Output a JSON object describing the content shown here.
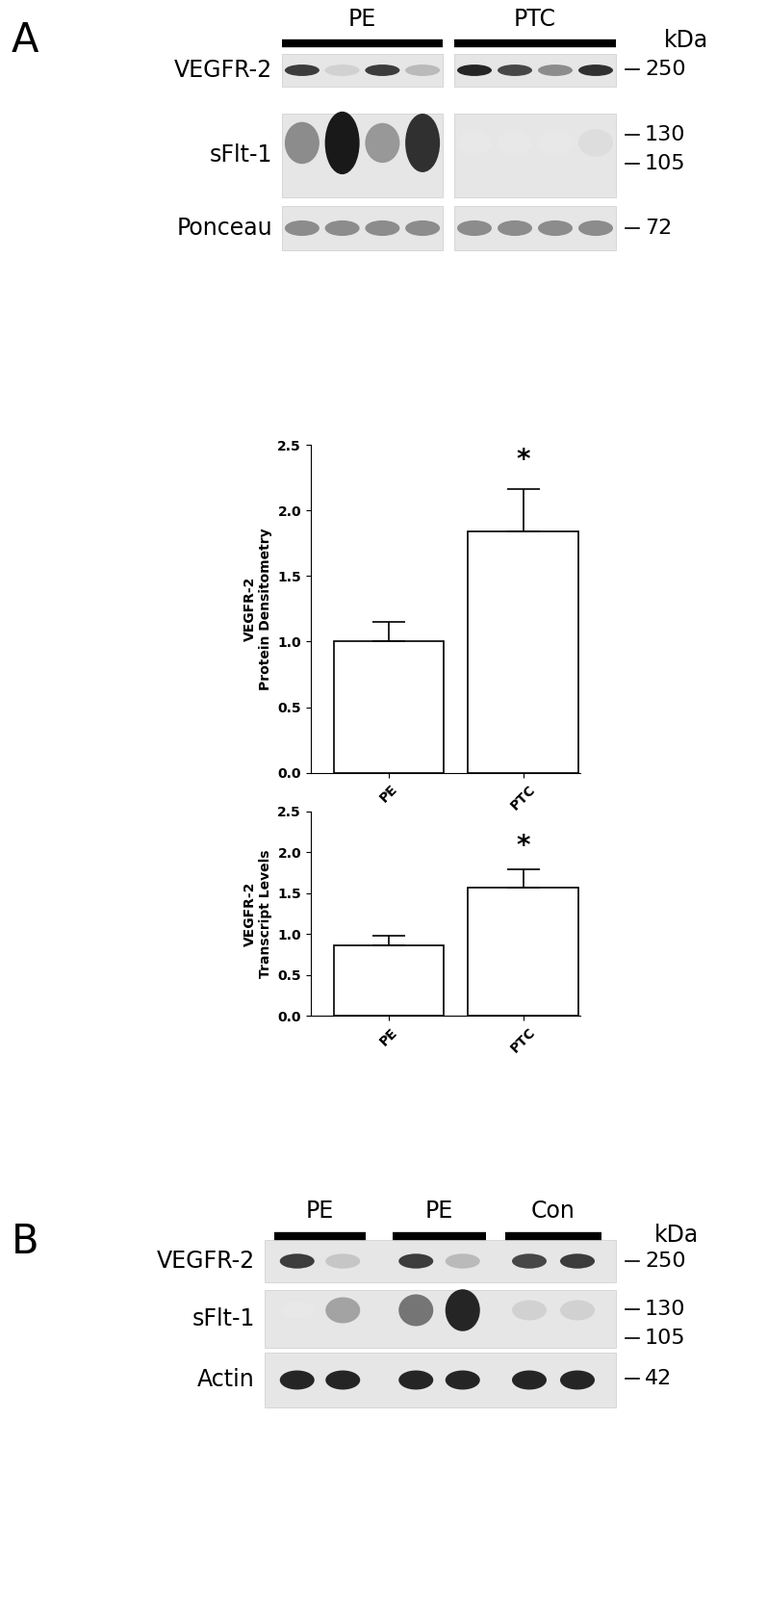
{
  "chart_data": [
    {
      "type": "bar",
      "categories": [
        "PE",
        "PTC"
      ],
      "values": [
        1.0,
        1.84
      ],
      "error": [
        0.15,
        0.32
      ],
      "y_label": "VEGFR-2\nProtein Densitometry",
      "color": "#ffffff",
      "ylim": [
        0,
        2.5
      ],
      "yticks": [
        {
          "value": 0,
          "label": "0.0"
        },
        {
          "value": 0.5,
          "label": "0.5"
        },
        {
          "value": 1,
          "label": "1.0"
        },
        {
          "value": 1.5,
          "label": "1.5"
        },
        {
          "value": 2,
          "label": "2.0"
        },
        {
          "value": 2.5,
          "label": "2.5"
        }
      ],
      "annotations": [
        {
          "text": "*",
          "category": "PTC"
        }
      ]
    },
    {
      "type": "bar",
      "categories": [
        "PE",
        "PTC"
      ],
      "values": [
        0.86,
        1.57
      ],
      "error": [
        0.12,
        0.22
      ],
      "y_label": "VEGFR-2\nTranscript Levels",
      "color": "#ffffff",
      "ylim": [
        0,
        2.5
      ],
      "yticks": [
        {
          "value": 0,
          "label": "0.0"
        },
        {
          "value": 0.5,
          "label": "0.5"
        },
        {
          "value": 1,
          "label": "1.0"
        },
        {
          "value": 1.5,
          "label": "1.5"
        },
        {
          "value": 2,
          "label": "2.0"
        },
        {
          "value": 2.5,
          "label": "2.5"
        }
      ],
      "annotations": [
        {
          "text": "*",
          "category": "PTC"
        }
      ]
    }
  ],
  "blots": [
    {
      "panel": "A",
      "unit": "kDa",
      "groups": [
        {
          "label": "PE",
          "lanes": 4
        },
        {
          "label": "PTC",
          "lanes": 4
        }
      ],
      "rows": [
        {
          "name": "VEGFR-2",
          "markers": [
            250
          ],
          "intensity": [
            0.85,
            0.2,
            0.85,
            0.3,
            0.95,
            0.8,
            0.5,
            0.9
          ]
        },
        {
          "name": "sFlt-1",
          "markers": [
            130,
            105
          ],
          "intensity": [
            0.5,
            1.0,
            0.45,
            0.9,
            0.1,
            0.1,
            0.1,
            0.15
          ]
        },
        {
          "name": "Ponceau",
          "markers": [
            72
          ],
          "intensity": [
            0.5,
            0.5,
            0.5,
            0.5,
            0.5,
            0.5,
            0.5,
            0.5
          ]
        }
      ]
    },
    {
      "panel": "B",
      "unit": "kDa",
      "groups": [
        {
          "label": "PE",
          "lanes": 2
        },
        {
          "label": "PE",
          "lanes": 2
        },
        {
          "label": "Con",
          "lanes": 2
        }
      ],
      "rows": [
        {
          "name": "VEGFR-2",
          "markers": [
            250
          ],
          "intensity": [
            0.85,
            0.25,
            0.85,
            0.3,
            0.8,
            0.85
          ]
        },
        {
          "name": "sFlt-1",
          "markers": [
            130,
            105
          ],
          "intensity": [
            0.1,
            0.4,
            0.6,
            0.95,
            0.2,
            0.2
          ]
        },
        {
          "name": "Actin",
          "markers": [
            42
          ],
          "intensity": [
            0.95,
            0.95,
            0.95,
            0.95,
            0.95,
            0.95
          ]
        }
      ]
    }
  ]
}
